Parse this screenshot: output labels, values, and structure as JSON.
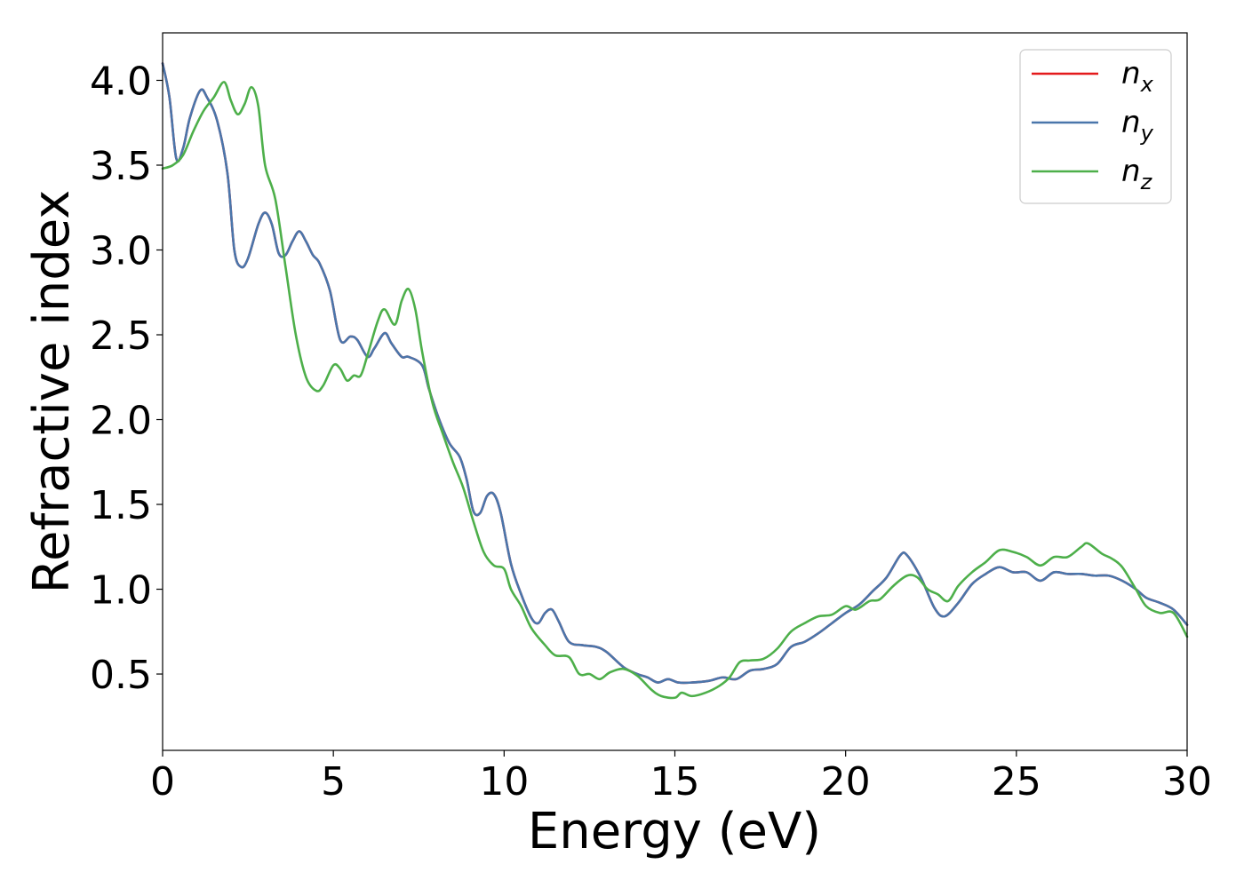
{
  "chart_data": {
    "type": "line",
    "title": "",
    "xlabel": "Energy (eV)",
    "ylabel": "Refractive index",
    "xlim": [
      0,
      30
    ],
    "ylim": [
      0.05,
      4.28
    ],
    "xticks": [
      0,
      5,
      10,
      15,
      20,
      25,
      30
    ],
    "yticks": [
      0.5,
      1.0,
      1.5,
      2.0,
      2.5,
      3.0,
      3.5,
      4.0
    ],
    "xtick_labels": [
      "0",
      "5",
      "10",
      "15",
      "20",
      "25",
      "30"
    ],
    "ytick_labels": [
      "0.5",
      "1.0",
      "1.5",
      "2.0",
      "2.5",
      "3.0",
      "3.5",
      "4.0"
    ],
    "grid": false,
    "legend_position": "top-right",
    "legend_subscripts": [
      "x",
      "y",
      "z"
    ],
    "series": [
      {
        "name": "n_x",
        "color": "#e41a1c",
        "points": [
          [
            0,
            4.1
          ],
          [
            0.2,
            3.9
          ],
          [
            0.4,
            3.54
          ],
          [
            0.6,
            3.6
          ],
          [
            0.8,
            3.78
          ],
          [
            1.1,
            3.94
          ],
          [
            1.3,
            3.9
          ],
          [
            1.6,
            3.76
          ],
          [
            1.9,
            3.45
          ],
          [
            2.1,
            3.0
          ],
          [
            2.3,
            2.9
          ],
          [
            2.5,
            2.95
          ],
          [
            2.8,
            3.15
          ],
          [
            3.0,
            3.22
          ],
          [
            3.2,
            3.15
          ],
          [
            3.4,
            2.98
          ],
          [
            3.6,
            2.97
          ],
          [
            3.8,
            3.05
          ],
          [
            4.0,
            3.11
          ],
          [
            4.2,
            3.05
          ],
          [
            4.4,
            2.97
          ],
          [
            4.6,
            2.92
          ],
          [
            4.9,
            2.76
          ],
          [
            5.2,
            2.47
          ],
          [
            5.5,
            2.49
          ],
          [
            5.7,
            2.47
          ],
          [
            6.0,
            2.37
          ],
          [
            6.2,
            2.42
          ],
          [
            6.5,
            2.51
          ],
          [
            6.7,
            2.45
          ],
          [
            7.0,
            2.37
          ],
          [
            7.2,
            2.37
          ],
          [
            7.6,
            2.32
          ],
          [
            7.8,
            2.18
          ],
          [
            8.1,
            2.0
          ],
          [
            8.4,
            1.86
          ],
          [
            8.7,
            1.78
          ],
          [
            8.9,
            1.65
          ],
          [
            9.1,
            1.46
          ],
          [
            9.3,
            1.45
          ],
          [
            9.5,
            1.55
          ],
          [
            9.7,
            1.56
          ],
          [
            9.9,
            1.45
          ],
          [
            10.2,
            1.15
          ],
          [
            10.5,
            0.97
          ],
          [
            10.8,
            0.83
          ],
          [
            11.0,
            0.8
          ],
          [
            11.2,
            0.86
          ],
          [
            11.4,
            0.88
          ],
          [
            11.6,
            0.81
          ],
          [
            11.9,
            0.69
          ],
          [
            12.3,
            0.67
          ],
          [
            12.7,
            0.66
          ],
          [
            13.0,
            0.63
          ],
          [
            13.5,
            0.54
          ],
          [
            13.9,
            0.5
          ],
          [
            14.2,
            0.48
          ],
          [
            14.5,
            0.45
          ],
          [
            14.8,
            0.47
          ],
          [
            15.1,
            0.45
          ],
          [
            15.5,
            0.45
          ],
          [
            16.0,
            0.46
          ],
          [
            16.4,
            0.48
          ],
          [
            16.8,
            0.47
          ],
          [
            17.2,
            0.52
          ],
          [
            17.6,
            0.53
          ],
          [
            18.0,
            0.56
          ],
          [
            18.4,
            0.66
          ],
          [
            18.8,
            0.69
          ],
          [
            19.2,
            0.74
          ],
          [
            19.6,
            0.8
          ],
          [
            20.0,
            0.86
          ],
          [
            20.4,
            0.91
          ],
          [
            20.8,
            0.99
          ],
          [
            21.2,
            1.07
          ],
          [
            21.6,
            1.2
          ],
          [
            21.8,
            1.2
          ],
          [
            22.2,
            1.07
          ],
          [
            22.6,
            0.89
          ],
          [
            22.9,
            0.84
          ],
          [
            23.3,
            0.92
          ],
          [
            23.7,
            1.03
          ],
          [
            24.1,
            1.09
          ],
          [
            24.5,
            1.13
          ],
          [
            24.9,
            1.1
          ],
          [
            25.3,
            1.1
          ],
          [
            25.7,
            1.05
          ],
          [
            26.1,
            1.1
          ],
          [
            26.5,
            1.09
          ],
          [
            26.9,
            1.09
          ],
          [
            27.3,
            1.08
          ],
          [
            27.7,
            1.08
          ],
          [
            28.1,
            1.05
          ],
          [
            28.5,
            1.0
          ],
          [
            28.8,
            0.95
          ],
          [
            29.2,
            0.92
          ],
          [
            29.6,
            0.88
          ],
          [
            30.0,
            0.79
          ]
        ]
      },
      {
        "name": "n_y",
        "color": "#4a76ab",
        "points": [
          [
            0,
            4.1
          ],
          [
            0.2,
            3.9
          ],
          [
            0.4,
            3.54
          ],
          [
            0.6,
            3.6
          ],
          [
            0.8,
            3.78
          ],
          [
            1.1,
            3.94
          ],
          [
            1.3,
            3.9
          ],
          [
            1.6,
            3.76
          ],
          [
            1.9,
            3.45
          ],
          [
            2.1,
            3.0
          ],
          [
            2.3,
            2.9
          ],
          [
            2.5,
            2.95
          ],
          [
            2.8,
            3.15
          ],
          [
            3.0,
            3.22
          ],
          [
            3.2,
            3.15
          ],
          [
            3.4,
            2.98
          ],
          [
            3.6,
            2.97
          ],
          [
            3.8,
            3.05
          ],
          [
            4.0,
            3.11
          ],
          [
            4.2,
            3.05
          ],
          [
            4.4,
            2.97
          ],
          [
            4.6,
            2.92
          ],
          [
            4.9,
            2.76
          ],
          [
            5.2,
            2.47
          ],
          [
            5.5,
            2.49
          ],
          [
            5.7,
            2.47
          ],
          [
            6.0,
            2.37
          ],
          [
            6.2,
            2.42
          ],
          [
            6.5,
            2.51
          ],
          [
            6.7,
            2.45
          ],
          [
            7.0,
            2.37
          ],
          [
            7.2,
            2.37
          ],
          [
            7.6,
            2.32
          ],
          [
            7.8,
            2.18
          ],
          [
            8.1,
            2.0
          ],
          [
            8.4,
            1.86
          ],
          [
            8.7,
            1.78
          ],
          [
            8.9,
            1.65
          ],
          [
            9.1,
            1.46
          ],
          [
            9.3,
            1.45
          ],
          [
            9.5,
            1.55
          ],
          [
            9.7,
            1.56
          ],
          [
            9.9,
            1.45
          ],
          [
            10.2,
            1.15
          ],
          [
            10.5,
            0.97
          ],
          [
            10.8,
            0.83
          ],
          [
            11.0,
            0.8
          ],
          [
            11.2,
            0.86
          ],
          [
            11.4,
            0.88
          ],
          [
            11.6,
            0.81
          ],
          [
            11.9,
            0.69
          ],
          [
            12.3,
            0.67
          ],
          [
            12.7,
            0.66
          ],
          [
            13.0,
            0.63
          ],
          [
            13.5,
            0.54
          ],
          [
            13.9,
            0.5
          ],
          [
            14.2,
            0.48
          ],
          [
            14.5,
            0.45
          ],
          [
            14.8,
            0.47
          ],
          [
            15.1,
            0.45
          ],
          [
            15.5,
            0.45
          ],
          [
            16.0,
            0.46
          ],
          [
            16.4,
            0.48
          ],
          [
            16.8,
            0.47
          ],
          [
            17.2,
            0.52
          ],
          [
            17.6,
            0.53
          ],
          [
            18.0,
            0.56
          ],
          [
            18.4,
            0.66
          ],
          [
            18.8,
            0.69
          ],
          [
            19.2,
            0.74
          ],
          [
            19.6,
            0.8
          ],
          [
            20.0,
            0.86
          ],
          [
            20.4,
            0.91
          ],
          [
            20.8,
            0.99
          ],
          [
            21.2,
            1.07
          ],
          [
            21.6,
            1.2
          ],
          [
            21.8,
            1.2
          ],
          [
            22.2,
            1.07
          ],
          [
            22.6,
            0.89
          ],
          [
            22.9,
            0.84
          ],
          [
            23.3,
            0.92
          ],
          [
            23.7,
            1.03
          ],
          [
            24.1,
            1.09
          ],
          [
            24.5,
            1.13
          ],
          [
            24.9,
            1.1
          ],
          [
            25.3,
            1.1
          ],
          [
            25.7,
            1.05
          ],
          [
            26.1,
            1.1
          ],
          [
            26.5,
            1.09
          ],
          [
            26.9,
            1.09
          ],
          [
            27.3,
            1.08
          ],
          [
            27.7,
            1.08
          ],
          [
            28.1,
            1.05
          ],
          [
            28.5,
            1.0
          ],
          [
            28.8,
            0.95
          ],
          [
            29.2,
            0.92
          ],
          [
            29.6,
            0.88
          ],
          [
            30.0,
            0.79
          ]
        ]
      },
      {
        "name": "n_z",
        "color": "#4daf4a",
        "points": [
          [
            0,
            3.48
          ],
          [
            0.3,
            3.5
          ],
          [
            0.6,
            3.56
          ],
          [
            0.9,
            3.7
          ],
          [
            1.2,
            3.82
          ],
          [
            1.5,
            3.9
          ],
          [
            1.8,
            3.99
          ],
          [
            2.0,
            3.88
          ],
          [
            2.2,
            3.8
          ],
          [
            2.4,
            3.86
          ],
          [
            2.6,
            3.96
          ],
          [
            2.8,
            3.85
          ],
          [
            3.0,
            3.5
          ],
          [
            3.3,
            3.3
          ],
          [
            3.6,
            2.9
          ],
          [
            3.9,
            2.5
          ],
          [
            4.2,
            2.25
          ],
          [
            4.5,
            2.17
          ],
          [
            4.7,
            2.2
          ],
          [
            5.0,
            2.32
          ],
          [
            5.2,
            2.3
          ],
          [
            5.4,
            2.23
          ],
          [
            5.6,
            2.26
          ],
          [
            5.8,
            2.26
          ],
          [
            6.0,
            2.38
          ],
          [
            6.3,
            2.58
          ],
          [
            6.5,
            2.65
          ],
          [
            6.8,
            2.56
          ],
          [
            7.0,
            2.7
          ],
          [
            7.2,
            2.77
          ],
          [
            7.4,
            2.65
          ],
          [
            7.6,
            2.4
          ],
          [
            7.9,
            2.1
          ],
          [
            8.2,
            1.92
          ],
          [
            8.5,
            1.75
          ],
          [
            8.8,
            1.6
          ],
          [
            9.1,
            1.4
          ],
          [
            9.4,
            1.22
          ],
          [
            9.7,
            1.14
          ],
          [
            10.0,
            1.12
          ],
          [
            10.2,
            1.0
          ],
          [
            10.5,
            0.9
          ],
          [
            10.8,
            0.77
          ],
          [
            11.2,
            0.67
          ],
          [
            11.5,
            0.61
          ],
          [
            11.9,
            0.6
          ],
          [
            12.2,
            0.5
          ],
          [
            12.5,
            0.5
          ],
          [
            12.8,
            0.47
          ],
          [
            13.1,
            0.51
          ],
          [
            13.5,
            0.53
          ],
          [
            13.9,
            0.49
          ],
          [
            14.3,
            0.41
          ],
          [
            14.6,
            0.37
          ],
          [
            15.0,
            0.36
          ],
          [
            15.2,
            0.39
          ],
          [
            15.5,
            0.37
          ],
          [
            15.9,
            0.39
          ],
          [
            16.3,
            0.43
          ],
          [
            16.6,
            0.48
          ],
          [
            16.9,
            0.57
          ],
          [
            17.2,
            0.58
          ],
          [
            17.6,
            0.59
          ],
          [
            18.0,
            0.65
          ],
          [
            18.4,
            0.75
          ],
          [
            18.8,
            0.8
          ],
          [
            19.2,
            0.84
          ],
          [
            19.6,
            0.85
          ],
          [
            20.0,
            0.9
          ],
          [
            20.3,
            0.88
          ],
          [
            20.7,
            0.93
          ],
          [
            21.0,
            0.94
          ],
          [
            21.4,
            1.02
          ],
          [
            21.8,
            1.08
          ],
          [
            22.1,
            1.07
          ],
          [
            22.4,
            1.0
          ],
          [
            22.7,
            0.97
          ],
          [
            23.0,
            0.93
          ],
          [
            23.3,
            1.02
          ],
          [
            23.7,
            1.1
          ],
          [
            24.1,
            1.16
          ],
          [
            24.5,
            1.23
          ],
          [
            24.9,
            1.22
          ],
          [
            25.3,
            1.19
          ],
          [
            25.7,
            1.14
          ],
          [
            26.1,
            1.19
          ],
          [
            26.5,
            1.19
          ],
          [
            26.9,
            1.25
          ],
          [
            27.1,
            1.27
          ],
          [
            27.5,
            1.21
          ],
          [
            27.8,
            1.18
          ],
          [
            28.1,
            1.13
          ],
          [
            28.5,
            1.0
          ],
          [
            28.8,
            0.9
          ],
          [
            29.2,
            0.86
          ],
          [
            29.6,
            0.86
          ],
          [
            30.0,
            0.72
          ]
        ]
      }
    ]
  }
}
